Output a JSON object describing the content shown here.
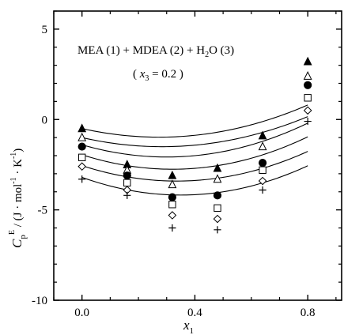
{
  "chart_data": {
    "type": "scatter",
    "xlabel_main": "x",
    "xlabel_sub": "1",
    "ylabel_main": "C",
    "ylabel_sub": "p",
    "ylabel_sup": "E",
    "ylabel_units": " / (J · mol",
    "ylabel_units_exp": "-1",
    "ylabel_units_mid": " · K",
    "ylabel_units_exp2": "-1",
    "ylabel_units_end": ")",
    "annotation_line1": "MEA (1) + MDEA (2) + H",
    "annotation_line1_sub": "2",
    "annotation_line1_end": "O (3)",
    "annotation_line2_open": "( ",
    "annotation_line2_var": "x",
    "annotation_line2_sub": "3",
    "annotation_line2_end": " = 0.2 )",
    "xlim": [
      -0.1,
      0.92
    ],
    "ylim": [
      -10,
      6
    ],
    "x_ticks": [
      0.0,
      0.4,
      0.8
    ],
    "x_tick_labels": [
      "0.0",
      "0.4",
      "0.8"
    ],
    "x_minor_ticks": [
      -0.1,
      0.1,
      0.2,
      0.3,
      0.5,
      0.6,
      0.7,
      0.9
    ],
    "y_ticks": [
      5,
      0,
      -5,
      -10
    ],
    "y_tick_labels": [
      "5",
      "0",
      "-5",
      "-10"
    ],
    "x": [
      0.0,
      0.16,
      0.32,
      0.48,
      0.64,
      0.8
    ],
    "series": [
      {
        "marker": "filled-triangle",
        "values": [
          -0.5,
          -2.5,
          -3.1,
          -2.7,
          -0.9,
          3.2
        ],
        "fit": [
          -0.5,
          -3.5,
          6.41
        ]
      },
      {
        "marker": "open-triangle",
        "values": [
          -1.0,
          -2.8,
          -3.6,
          -3.3,
          -1.5,
          2.4
        ],
        "fit": [
          -1.0,
          -3.55,
          6.25
        ]
      },
      {
        "marker": "filled-circle",
        "values": [
          -1.5,
          -3.1,
          -4.3,
          -4.2,
          -2.4,
          1.9
        ],
        "fit": [
          -1.4,
          -4.5,
          7.5
        ]
      },
      {
        "marker": "open-square",
        "values": [
          -2.1,
          -3.5,
          -4.7,
          -4.9,
          -2.8,
          1.2
        ],
        "fit": [
          -1.95,
          -5.0,
          7.8
        ]
      },
      {
        "marker": "open-diamond",
        "values": [
          -2.6,
          -3.9,
          -5.3,
          -5.5,
          -3.4,
          0.5
        ],
        "fit": [
          -2.55,
          -5.1,
          7.6
        ]
      },
      {
        "marker": "plus",
        "values": [
          -3.3,
          -4.2,
          -6.0,
          -6.1,
          -3.9,
          -0.1
        ],
        "fit": [
          -3.2,
          -5.6,
          8.0
        ]
      }
    ]
  }
}
